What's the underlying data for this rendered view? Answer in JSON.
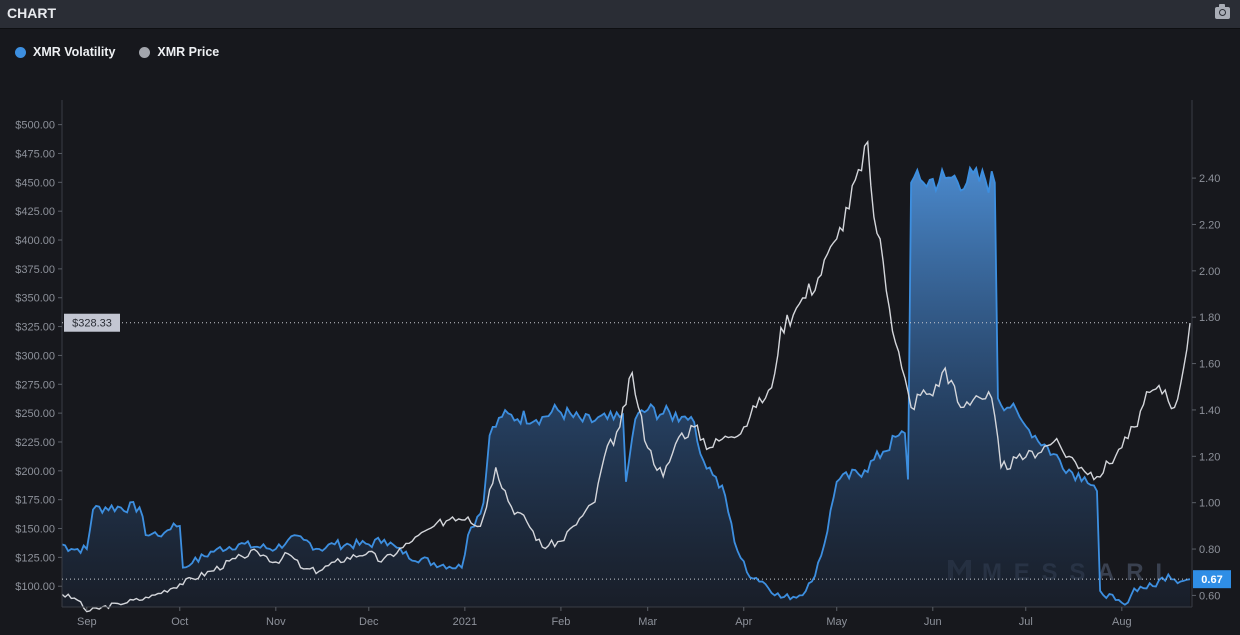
{
  "header": {
    "title": "CHART",
    "screenshot_icon": "camera-icon"
  },
  "legend": [
    {
      "label": "XMR Volatility",
      "color": "#3d8fe0"
    },
    {
      "label": "XMR Price",
      "color": "#a3a6ad"
    }
  ],
  "watermark": "MESSARI",
  "chart_data": {
    "type": "line",
    "x_unit": "days since 2020-08-24",
    "x_range": [
      0,
      364
    ],
    "x_ticks": [
      {
        "label": "Sep",
        "day": 8
      },
      {
        "label": "Oct",
        "day": 38
      },
      {
        "label": "Nov",
        "day": 69
      },
      {
        "label": "Dec",
        "day": 99
      },
      {
        "label": "2021",
        "day": 130
      },
      {
        "label": "Feb",
        "day": 161
      },
      {
        "label": "Mar",
        "day": 189
      },
      {
        "label": "Apr",
        "day": 220
      },
      {
        "label": "May",
        "day": 250
      },
      {
        "label": "Jun",
        "day": 281
      },
      {
        "label": "Jul",
        "day": 311
      },
      {
        "label": "Aug",
        "day": 342
      }
    ],
    "left_axis": {
      "series": "XMR Price",
      "range": [
        82,
        530
      ],
      "ticks": [
        "$100.00",
        "$125.00",
        "$150.00",
        "$175.00",
        "$200.00",
        "$225.00",
        "$250.00",
        "$275.00",
        "$300.00",
        "$325.00",
        "$350.00",
        "$375.00",
        "$400.00",
        "$425.00",
        "$450.00",
        "$475.00",
        "$500.00"
      ],
      "tick_values": [
        100,
        125,
        150,
        175,
        200,
        225,
        250,
        275,
        300,
        325,
        350,
        375,
        400,
        425,
        450,
        475,
        500
      ],
      "current_label": "$328.33",
      "current_value": 328.33
    },
    "right_axis": {
      "series": "XMR Volatility",
      "range": [
        0.55,
        2.78
      ],
      "ticks": [
        "0.60",
        "0.80",
        "1.00",
        "1.20",
        "1.40",
        "1.60",
        "1.80",
        "2.00",
        "2.20",
        "2.40"
      ],
      "tick_values": [
        0.6,
        0.8,
        1.0,
        1.2,
        1.4,
        1.6,
        1.8,
        2.0,
        2.2,
        2.4
      ],
      "current_label": "0.67",
      "current_value": 0.67
    },
    "series": [
      {
        "name": "XMR Volatility",
        "axis": "right",
        "type": "area",
        "points": [
          [
            0,
            0.82
          ],
          [
            3,
            0.8
          ],
          [
            8,
            0.8
          ],
          [
            10,
            0.97
          ],
          [
            14,
            0.98
          ],
          [
            25,
            0.98
          ],
          [
            27,
            0.86
          ],
          [
            33,
            0.87
          ],
          [
            36,
            0.91
          ],
          [
            38,
            0.9
          ],
          [
            39,
            0.72
          ],
          [
            42,
            0.74
          ],
          [
            50,
            0.8
          ],
          [
            57,
            0.82
          ],
          [
            69,
            0.8
          ],
          [
            73,
            0.84
          ],
          [
            78,
            0.84
          ],
          [
            83,
            0.8
          ],
          [
            88,
            0.82
          ],
          [
            99,
            0.82
          ],
          [
            104,
            0.84
          ],
          [
            110,
            0.78
          ],
          [
            120,
            0.74
          ],
          [
            129,
            0.72
          ],
          [
            131,
            0.86
          ],
          [
            136,
            1.0
          ],
          [
            138,
            1.29
          ],
          [
            142,
            1.37
          ],
          [
            155,
            1.37
          ],
          [
            160,
            1.4
          ],
          [
            168,
            1.35
          ],
          [
            178,
            1.36
          ],
          [
            181,
            1.38
          ],
          [
            182,
            1.09
          ],
          [
            185,
            1.36
          ],
          [
            189,
            1.4
          ],
          [
            200,
            1.37
          ],
          [
            203,
            1.37
          ],
          [
            206,
            1.21
          ],
          [
            210,
            1.12
          ],
          [
            214,
            1.03
          ],
          [
            217,
            0.83
          ],
          [
            221,
            0.7
          ],
          [
            226,
            0.66
          ],
          [
            232,
            0.59
          ],
          [
            238,
            0.6
          ],
          [
            242,
            0.66
          ],
          [
            246,
            0.82
          ],
          [
            250,
            1.09
          ],
          [
            259,
            1.14
          ],
          [
            265,
            1.22
          ],
          [
            270,
            1.29
          ],
          [
            272,
            1.3
          ],
          [
            273,
            1.1
          ],
          [
            274,
            2.38
          ],
          [
            278,
            2.38
          ],
          [
            285,
            2.4
          ],
          [
            298,
            2.39
          ],
          [
            301,
            2.38
          ],
          [
            302,
            1.45
          ],
          [
            306,
            1.41
          ],
          [
            311,
            1.33
          ],
          [
            320,
            1.21
          ],
          [
            326,
            1.13
          ],
          [
            330,
            1.11
          ],
          [
            334,
            1.05
          ],
          [
            335,
            0.62
          ],
          [
            340,
            0.58
          ],
          [
            343,
            0.56
          ],
          [
            346,
            0.63
          ],
          [
            352,
            0.64
          ],
          [
            357,
            0.69
          ],
          [
            361,
            0.66
          ],
          [
            364,
            0.67
          ]
        ]
      },
      {
        "name": "XMR Price",
        "axis": "left",
        "type": "line",
        "points": [
          [
            0,
            93
          ],
          [
            5,
            88
          ],
          [
            8,
            78
          ],
          [
            18,
            85
          ],
          [
            28,
            90
          ],
          [
            38,
            102
          ],
          [
            48,
            113
          ],
          [
            58,
            126
          ],
          [
            63,
            130
          ],
          [
            69,
            121
          ],
          [
            73,
            128
          ],
          [
            78,
            115
          ],
          [
            83,
            113
          ],
          [
            88,
            121
          ],
          [
            99,
            130
          ],
          [
            103,
            121
          ],
          [
            113,
            139
          ],
          [
            120,
            152
          ],
          [
            126,
            160
          ],
          [
            131,
            160
          ],
          [
            135,
            152
          ],
          [
            140,
            203
          ],
          [
            145,
            169
          ],
          [
            150,
            156
          ],
          [
            155,
            134
          ],
          [
            161,
            139
          ],
          [
            165,
            152
          ],
          [
            172,
            173
          ],
          [
            175,
            212
          ],
          [
            180,
            238
          ],
          [
            184,
            285
          ],
          [
            186,
            255
          ],
          [
            189,
            220
          ],
          [
            194,
            195
          ],
          [
            199,
            229
          ],
          [
            204,
            238
          ],
          [
            209,
            220
          ],
          [
            214,
            230
          ],
          [
            220,
            238
          ],
          [
            224,
            255
          ],
          [
            229,
            272
          ],
          [
            232,
            324
          ],
          [
            237,
            341
          ],
          [
            244,
            367
          ],
          [
            250,
            401
          ],
          [
            254,
            427
          ],
          [
            257,
            461
          ],
          [
            260,
            485
          ],
          [
            262,
            420
          ],
          [
            264,
            401
          ],
          [
            267,
            341
          ],
          [
            271,
            289
          ],
          [
            274,
            255
          ],
          [
            278,
            270
          ],
          [
            281,
            265
          ],
          [
            285,
            289
          ],
          [
            290,
            255
          ],
          [
            295,
            265
          ],
          [
            300,
            263
          ],
          [
            303,
            203
          ],
          [
            311,
            212
          ],
          [
            320,
            225
          ],
          [
            329,
            203
          ],
          [
            334,
            195
          ],
          [
            342,
            220
          ],
          [
            346,
            238
          ],
          [
            351,
            268
          ],
          [
            356,
            270
          ],
          [
            359,
            255
          ],
          [
            362,
            290
          ],
          [
            364,
            328
          ]
        ]
      }
    ]
  }
}
